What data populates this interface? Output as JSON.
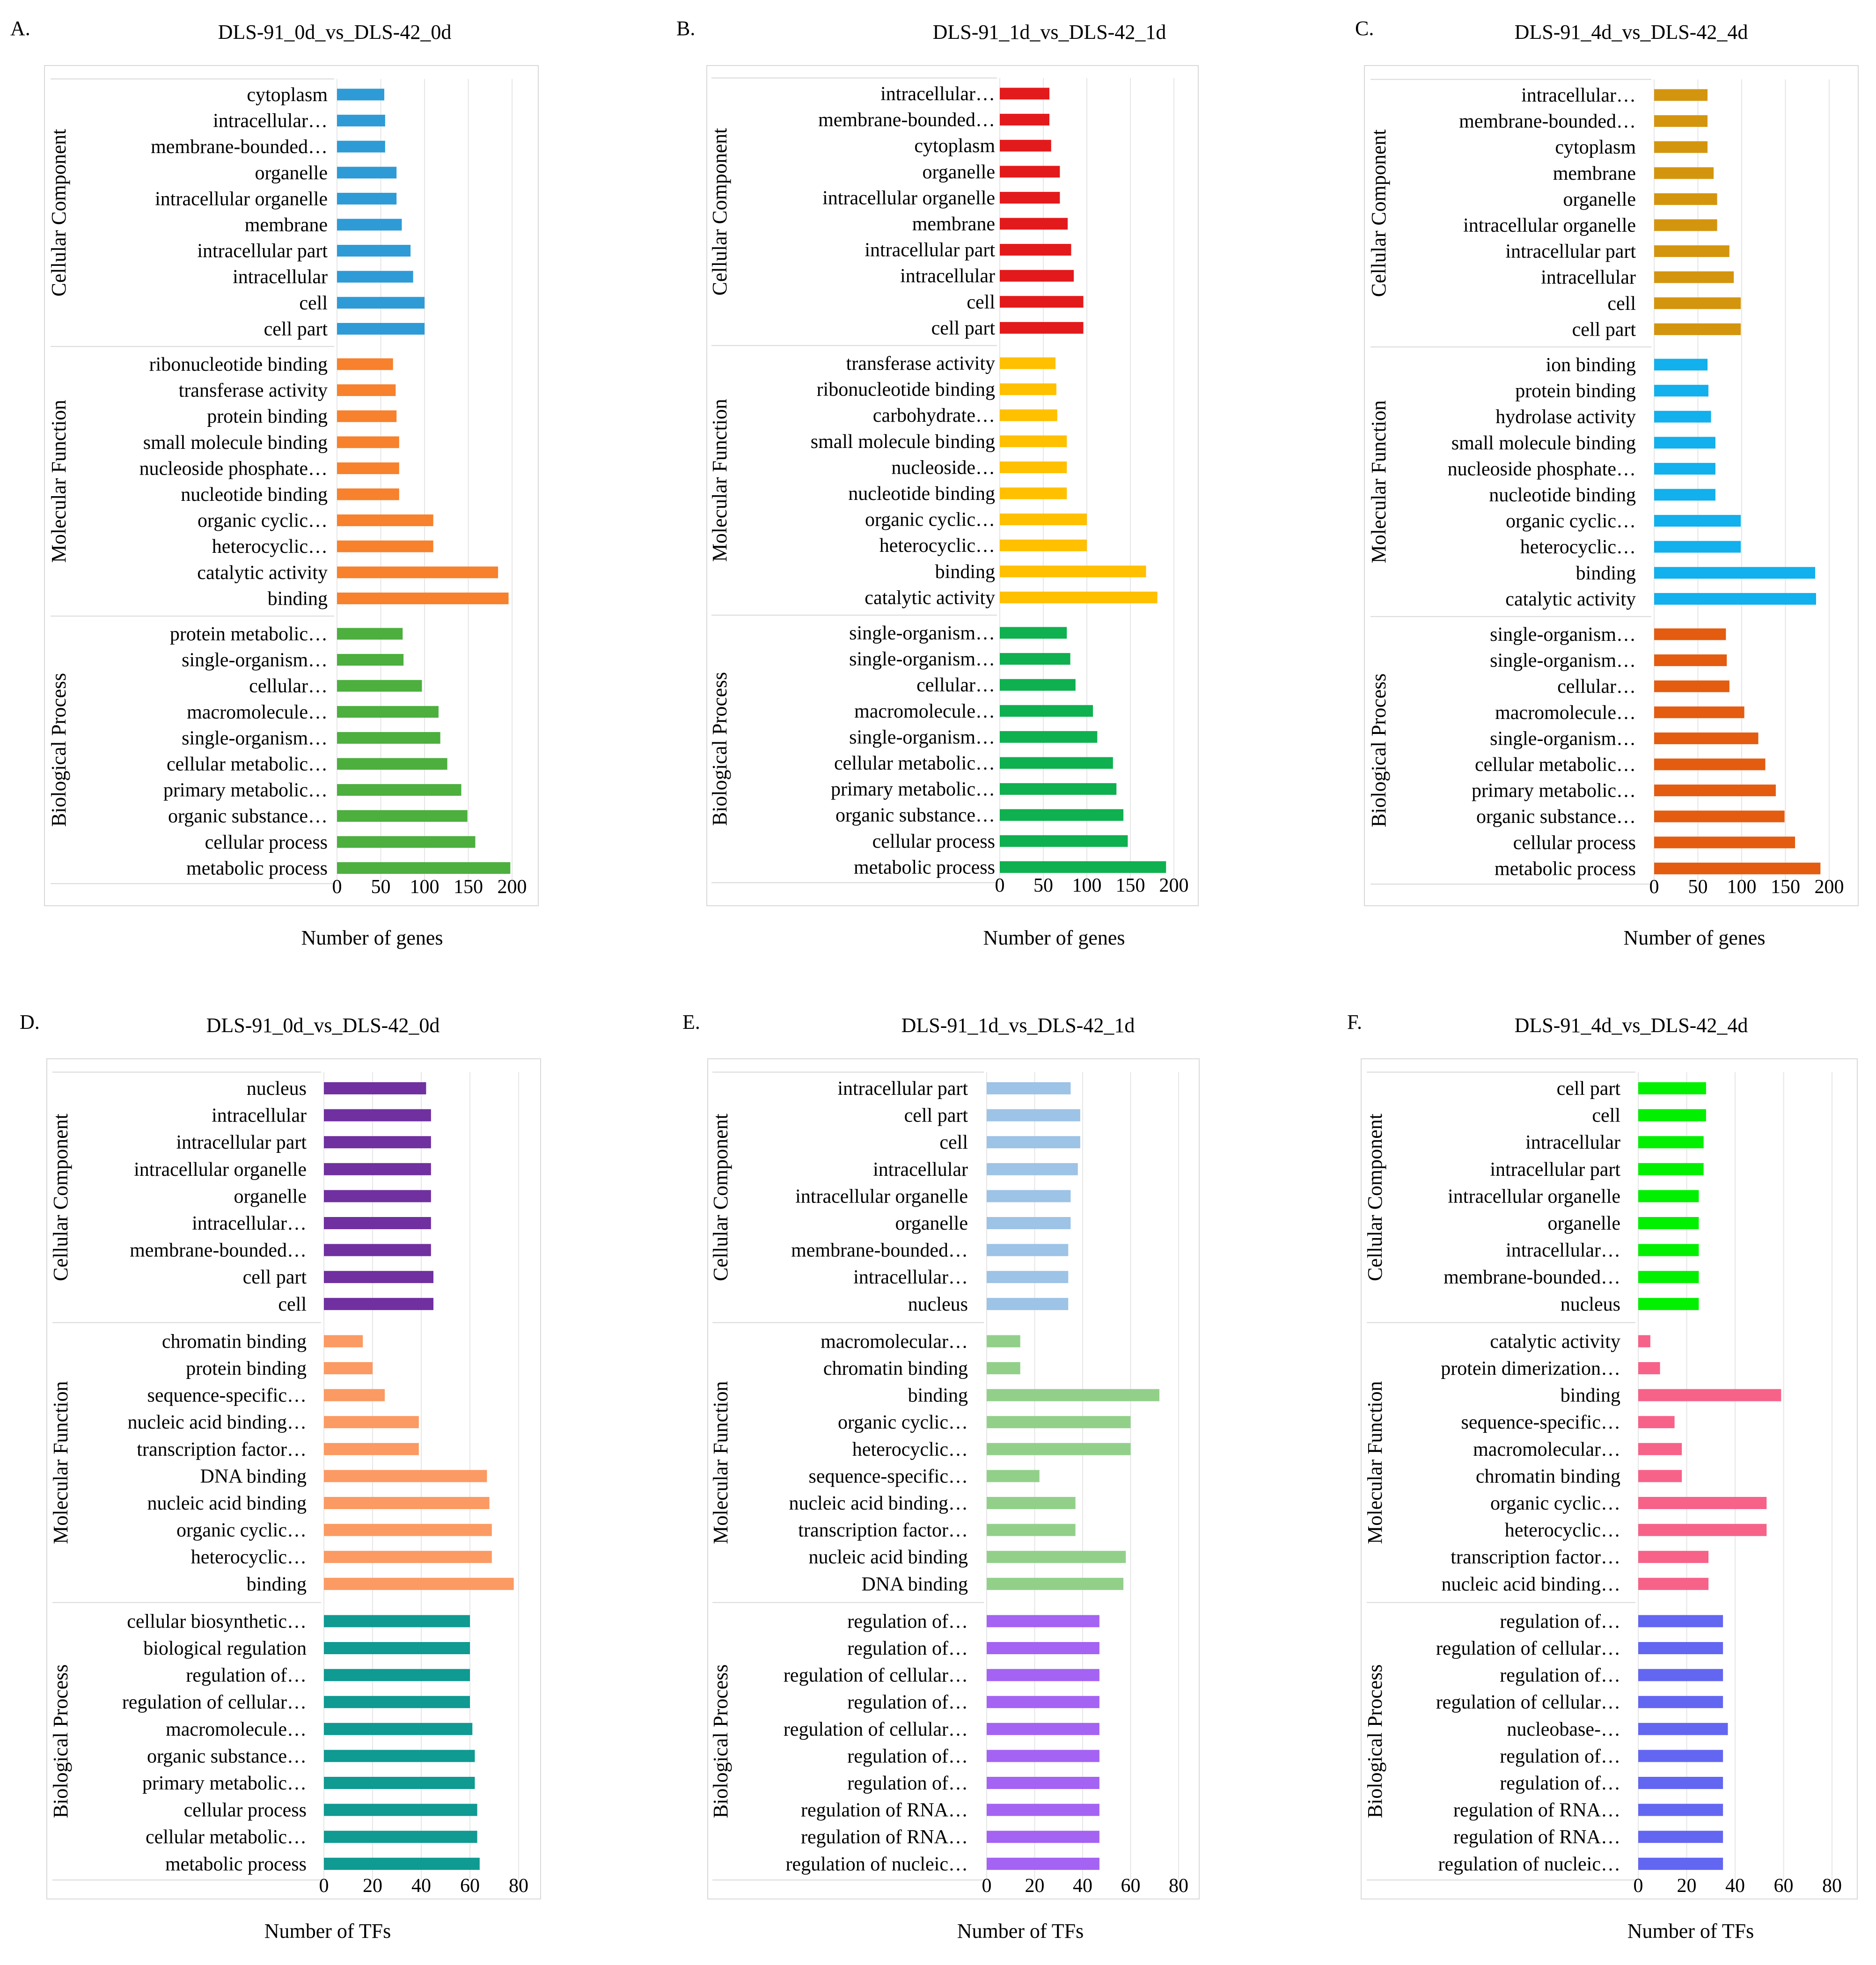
{
  "chart_data": [
    {
      "type": "bar",
      "orientation": "horizontal",
      "letter": "A.",
      "title": "DLS-91_0d_vs_DLS-42_0d",
      "xlabel": "Number of  genes",
      "xlim": [
        0,
        200
      ],
      "ticks": [
        0,
        50,
        100,
        150,
        200
      ],
      "groups": [
        {
          "name": "Cellular Component",
          "color": "#2e9bd6",
          "categories": [
            "cytoplasm",
            "intracellular…",
            "membrane-bounded…",
            "organelle",
            "intracellular organelle",
            "membrane",
            "intracellular part",
            "intracellular",
            "cell",
            "cell part"
          ],
          "values": [
            54,
            55,
            55,
            68,
            68,
            74,
            84,
            87,
            100,
            100
          ]
        },
        {
          "name": "Molecular Function",
          "color": "#f7812c",
          "categories": [
            "ribonucleotide binding",
            "transferase activity",
            "protein binding",
            "small molecule binding",
            "nucleoside phosphate…",
            "nucleotide binding",
            "organic cyclic…",
            "heterocyclic…",
            "catalytic activity",
            "binding"
          ],
          "values": [
            64,
            67,
            68,
            71,
            71,
            71,
            110,
            110,
            184,
            196
          ]
        },
        {
          "name": "Biological Process",
          "color": "#4caf3e",
          "categories": [
            "protein metabolic…",
            "single-organism…",
            "cellular…",
            "macromolecule…",
            "single-organism…",
            "cellular metabolic…",
            "primary metabolic…",
            "organic substance…",
            "cellular process",
            "metabolic process"
          ],
          "values": [
            75,
            76,
            97,
            116,
            118,
            126,
            142,
            149,
            158,
            198
          ]
        }
      ]
    },
    {
      "type": "bar",
      "orientation": "horizontal",
      "letter": "B.",
      "title": "DLS-91_1d_vs_DLS-42_1d",
      "xlabel": "Number of  genes",
      "xlim": [
        0,
        200
      ],
      "ticks": [
        0,
        50,
        100,
        150,
        200
      ],
      "groups": [
        {
          "name": "Cellular Component",
          "color": "#e31a1c",
          "categories": [
            "intracellular…",
            "membrane-bounded…",
            "cytoplasm",
            "organelle",
            "intracellular organelle",
            "membrane",
            "intracellular part",
            "intracellular",
            "cell",
            "cell part"
          ],
          "values": [
            57,
            57,
            59,
            69,
            69,
            78,
            82,
            85,
            96,
            96
          ]
        },
        {
          "name": "Molecular Function",
          "color": "#ffc000",
          "categories": [
            "transferase activity",
            "ribonucleotide binding",
            "carbohydrate…",
            "small molecule binding",
            "nucleoside…",
            "nucleotide binding",
            "organic cyclic…",
            "heterocyclic…",
            "binding",
            "catalytic activity"
          ],
          "values": [
            64,
            65,
            66,
            77,
            77,
            77,
            100,
            100,
            168,
            181
          ]
        },
        {
          "name": "Biological Process",
          "color": "#0fb04f",
          "categories": [
            "single-organism…",
            "single-organism…",
            "cellular…",
            "macromolecule…",
            "single-organism…",
            "cellular metabolic…",
            "primary metabolic…",
            "organic substance…",
            "cellular process",
            "metabolic process"
          ],
          "values": [
            77,
            81,
            87,
            107,
            112,
            130,
            134,
            142,
            147,
            191
          ]
        }
      ]
    },
    {
      "type": "bar",
      "orientation": "horizontal",
      "letter": "C.",
      "title": "DLS-91_4d_vs_DLS-42_4d",
      "xlabel": "Number of  genes",
      "xlim": [
        0,
        200
      ],
      "ticks": [
        0,
        50,
        100,
        150,
        200
      ],
      "groups": [
        {
          "name": "Cellular Component",
          "color": "#d4950e",
          "categories": [
            "intracellular…",
            "membrane-bounded…",
            "cytoplasm",
            "membrane",
            "organelle",
            "intracellular organelle",
            "intracellular part",
            "intracellular",
            "cell",
            "cell part"
          ],
          "values": [
            61,
            61,
            61,
            68,
            72,
            72,
            86,
            91,
            99,
            99
          ]
        },
        {
          "name": "Molecular Function",
          "color": "#12b0ec",
          "categories": [
            "ion binding",
            "protein binding",
            "hydrolase activity",
            "small molecule binding",
            "nucleoside phosphate…",
            "nucleotide binding",
            "organic cyclic…",
            "heterocyclic…",
            "binding",
            "catalytic activity"
          ],
          "values": [
            61,
            62,
            65,
            70,
            70,
            70,
            99,
            99,
            184,
            185
          ]
        },
        {
          "name": "Biological Process",
          "color": "#e45c10",
          "categories": [
            "single-organism…",
            "single-organism…",
            "cellular…",
            "macromolecule…",
            "single-organism…",
            "cellular metabolic…",
            "primary metabolic…",
            "organic substance…",
            "cellular process",
            "metabolic process"
          ],
          "values": [
            82,
            83,
            86,
            103,
            119,
            127,
            139,
            149,
            161,
            190
          ]
        }
      ]
    },
    {
      "type": "bar",
      "orientation": "horizontal",
      "letter": "D.",
      "title": "DLS-91_0d_vs_DLS-42_0d",
      "xlabel": "Number of TFs",
      "xlim": [
        0,
        80
      ],
      "ticks": [
        0,
        20,
        40,
        60,
        80
      ],
      "groups": [
        {
          "name": "Cellular Component",
          "color": "#7030a0",
          "categories": [
            "nucleus",
            "intracellular",
            "intracellular part",
            "intracellular organelle",
            "organelle",
            "intracellular…",
            "membrane-bounded…",
            "cell part",
            "cell"
          ],
          "values": [
            42,
            44,
            44,
            44,
            44,
            44,
            44,
            45,
            45
          ]
        },
        {
          "name": "Molecular Function",
          "color": "#fb9a63",
          "categories": [
            "chromatin binding",
            "protein binding",
            "sequence-specific…",
            "nucleic acid binding…",
            "transcription factor…",
            "DNA binding",
            "nucleic acid binding",
            "organic cyclic…",
            "heterocyclic…",
            "binding"
          ],
          "values": [
            16,
            20,
            25,
            39,
            39,
            67,
            68,
            69,
            69,
            78
          ]
        },
        {
          "name": "Biological Process",
          "color": "#0f9a92",
          "categories": [
            "cellular biosynthetic…",
            "biological regulation",
            "regulation of…",
            "regulation of cellular…",
            "macromolecule…",
            "organic substance…",
            "primary metabolic…",
            "cellular process",
            "cellular metabolic…",
            "metabolic process"
          ],
          "values": [
            60,
            60,
            60,
            60,
            61,
            62,
            62,
            63,
            63,
            64
          ]
        }
      ]
    },
    {
      "type": "bar",
      "orientation": "horizontal",
      "letter": "E.",
      "title": "DLS-91_1d_vs_DLS-42_1d",
      "xlabel": "Number of TFs",
      "xlim": [
        0,
        80
      ],
      "ticks": [
        0,
        20,
        40,
        60,
        80
      ],
      "groups": [
        {
          "name": "Cellular Component",
          "color": "#9dc3e6",
          "categories": [
            "intracellular part",
            "cell part",
            "cell",
            "intracellular",
            "intracellular organelle",
            "organelle",
            "membrane-bounded…",
            "intracellular…",
            "nucleus"
          ],
          "values": [
            35,
            39,
            39,
            38,
            35,
            35,
            34,
            34,
            34
          ]
        },
        {
          "name": "Molecular Function",
          "color": "#92d08a",
          "categories": [
            "macromolecular…",
            "chromatin binding",
            "binding",
            "organic cyclic…",
            "heterocyclic…",
            "sequence-specific…",
            "nucleic acid binding…",
            "transcription factor…",
            "nucleic acid binding",
            "DNA binding"
          ],
          "values": [
            14,
            14,
            72,
            60,
            60,
            22,
            37,
            37,
            58,
            57
          ]
        },
        {
          "name": "Biological Process",
          "color": "#a463f2",
          "categories": [
            "regulation of…",
            "regulation of…",
            "regulation of cellular…",
            "regulation of…",
            "regulation of cellular…",
            "regulation of…",
            "regulation of…",
            "regulation of RNA…",
            "regulation of RNA…",
            "regulation of nucleic…"
          ],
          "values": [
            47,
            47,
            47,
            47,
            47,
            47,
            47,
            47,
            47,
            47
          ]
        }
      ]
    },
    {
      "type": "bar",
      "orientation": "horizontal",
      "letter": "F.",
      "title": "DLS-91_4d_vs_DLS-42_4d",
      "xlabel": "Number of TFs",
      "xlim": [
        0,
        80
      ],
      "ticks": [
        0,
        20,
        40,
        60,
        80
      ],
      "groups": [
        {
          "name": "Cellular Component",
          "color": "#00f000",
          "categories": [
            "cell part",
            "cell",
            "intracellular",
            "intracellular part",
            "intracellular organelle",
            "organelle",
            "intracellular…",
            "membrane-bounded…",
            "nucleus"
          ],
          "values": [
            28,
            28,
            27,
            27,
            25,
            25,
            25,
            25,
            25
          ]
        },
        {
          "name": "Molecular Function",
          "color": "#f76289",
          "categories": [
            "catalytic activity",
            "protein dimerization…",
            "binding",
            "sequence-specific…",
            "macromolecular…",
            "chromatin binding",
            "organic cyclic…",
            "heterocyclic…",
            "transcription factor…",
            "nucleic acid binding…"
          ],
          "values": [
            5,
            9,
            59,
            15,
            18,
            18,
            53,
            53,
            29,
            29
          ]
        },
        {
          "name": "Biological Process",
          "color": "#6366f1",
          "categories": [
            "regulation of…",
            "regulation of cellular…",
            "regulation of…",
            "regulation of cellular…",
            "nucleobase-…",
            "regulation of…",
            "regulation of…",
            "regulation of RNA…",
            "regulation of RNA…",
            "regulation of nucleic…"
          ],
          "values": [
            35,
            35,
            35,
            35,
            37,
            35,
            35,
            35,
            35,
            35
          ]
        }
      ]
    }
  ]
}
